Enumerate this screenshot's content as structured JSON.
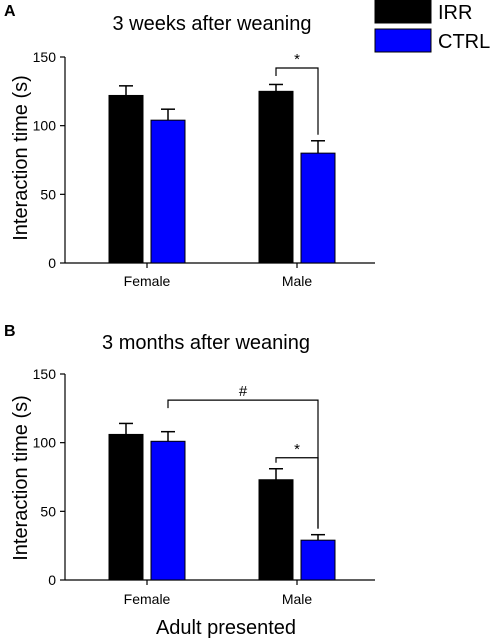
{
  "legend": {
    "items": [
      {
        "label": "IRR",
        "color": "#000000"
      },
      {
        "label": "CTRL",
        "color": "#0000ff"
      }
    ]
  },
  "xlabel_shared": "Adult presented",
  "chart_data": [
    {
      "type": "bar",
      "panel_label": "A",
      "title": "3 weeks after weaning",
      "ylabel": "Interaction time (s)",
      "xlabel": "",
      "ylim": [
        0,
        150
      ],
      "yticks": [
        0,
        50,
        100,
        150
      ],
      "categories": [
        "Female",
        "Male"
      ],
      "series": [
        {
          "name": "IRR",
          "color": "#000000",
          "values": [
            122,
            125
          ],
          "errors": [
            7,
            5
          ]
        },
        {
          "name": "CTRL",
          "color": "#0000ff",
          "values": [
            104,
            80
          ],
          "errors": [
            8,
            9
          ]
        }
      ],
      "annotations": [
        {
          "text": "*",
          "from": {
            "category": "Male",
            "series": "IRR"
          },
          "to": {
            "category": "Male",
            "series": "CTRL"
          },
          "y": 142
        }
      ]
    },
    {
      "type": "bar",
      "panel_label": "B",
      "title": "3 months after weaning",
      "ylabel": "Interaction time (s)",
      "xlabel": "Adult presented",
      "ylim": [
        0,
        150
      ],
      "yticks": [
        0,
        50,
        100,
        150
      ],
      "categories": [
        "Female",
        "Male"
      ],
      "series": [
        {
          "name": "IRR",
          "color": "#000000",
          "values": [
            106,
            73
          ],
          "errors": [
            8,
            8
          ]
        },
        {
          "name": "CTRL",
          "color": "#0000ff",
          "values": [
            101,
            29
          ],
          "errors": [
            7,
            4
          ]
        }
      ],
      "annotations": [
        {
          "text": "#",
          "from": {
            "category": "Female",
            "series": "CTRL"
          },
          "to": {
            "category": "Male",
            "series": "CTRL"
          },
          "y": 131
        },
        {
          "text": "*",
          "from": {
            "category": "Male",
            "series": "IRR"
          },
          "to": {
            "category": "Male",
            "series": "CTRL"
          },
          "y": 89
        }
      ]
    }
  ]
}
